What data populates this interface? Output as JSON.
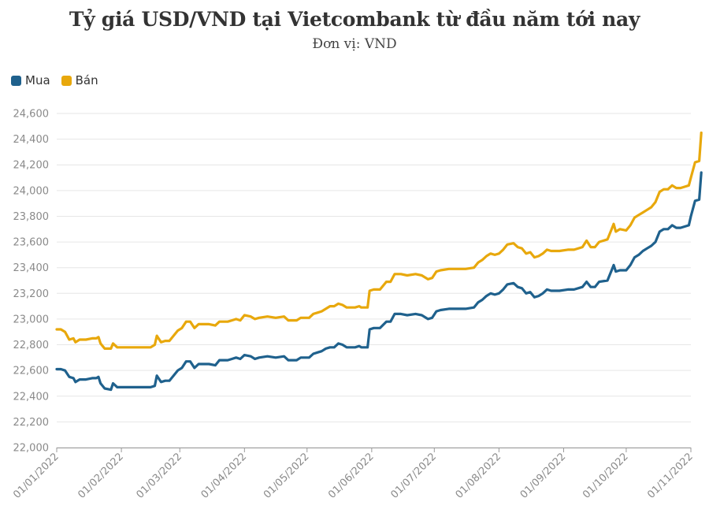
{
  "colors": {
    "mua": "#1f618d",
    "ban": "#e8a80c",
    "grid": "#e6e6e6",
    "axis": "#999999"
  },
  "chart_data": {
    "type": "line",
    "title": "Tỷ giá USD/VND tại Vietcombank từ đầu năm tới nay",
    "subtitle": "Đơn vị: VND",
    "legend_position": "top-left",
    "grid": true,
    "ylim": [
      22000,
      24600
    ],
    "y_ticks": [
      "22,000",
      "22,200",
      "22,400",
      "22,600",
      "22,800",
      "23,000",
      "23,200",
      "23,400",
      "23,600",
      "23,800",
      "24,000",
      "24,200",
      "24,400",
      "24,600"
    ],
    "y_tick_values": [
      22000,
      22200,
      22400,
      22600,
      22800,
      23000,
      23200,
      23400,
      23600,
      23800,
      24000,
      24200,
      24400,
      24600
    ],
    "x_ticks": [
      "01/01/2022",
      "01/02/2022",
      "01/03/2022",
      "01/04/2022",
      "01/05/2022",
      "01/06/2022",
      "01/07/2022",
      "01/08/2022",
      "01/09/2022",
      "01/10/2022",
      "01/11/2022"
    ],
    "series": [
      {
        "name": "Mua",
        "color": "#1f618d",
        "points": [
          [
            "2022-01-01",
            22610
          ],
          [
            "2022-01-03",
            22610
          ],
          [
            "2022-01-05",
            22600
          ],
          [
            "2022-01-07",
            22550
          ],
          [
            "2022-01-09",
            22540
          ],
          [
            "2022-01-10",
            22510
          ],
          [
            "2022-01-12",
            22530
          ],
          [
            "2022-01-15",
            22530
          ],
          [
            "2022-01-18",
            22540
          ],
          [
            "2022-01-20",
            22540
          ],
          [
            "2022-01-21",
            22550
          ],
          [
            "2022-01-22",
            22500
          ],
          [
            "2022-01-24",
            22460
          ],
          [
            "2022-01-27",
            22450
          ],
          [
            "2022-01-28",
            22500
          ],
          [
            "2022-01-30",
            22470
          ],
          [
            "2022-02-02",
            22470
          ],
          [
            "2022-02-06",
            22470
          ],
          [
            "2022-02-10",
            22470
          ],
          [
            "2022-02-15",
            22470
          ],
          [
            "2022-02-17",
            22480
          ],
          [
            "2022-02-18",
            22560
          ],
          [
            "2022-02-20",
            22510
          ],
          [
            "2022-02-22",
            22520
          ],
          [
            "2022-02-24",
            22520
          ],
          [
            "2022-02-26",
            22560
          ],
          [
            "2022-02-28",
            22600
          ],
          [
            "2022-03-02",
            22620
          ],
          [
            "2022-03-04",
            22670
          ],
          [
            "2022-03-06",
            22670
          ],
          [
            "2022-03-08",
            22620
          ],
          [
            "2022-03-10",
            22650
          ],
          [
            "2022-03-15",
            22650
          ],
          [
            "2022-03-18",
            22640
          ],
          [
            "2022-03-20",
            22680
          ],
          [
            "2022-03-24",
            22680
          ],
          [
            "2022-03-26",
            22690
          ],
          [
            "2022-03-28",
            22700
          ],
          [
            "2022-03-30",
            22690
          ],
          [
            "2022-04-01",
            22720
          ],
          [
            "2022-04-04",
            22710
          ],
          [
            "2022-04-06",
            22690
          ],
          [
            "2022-04-08",
            22700
          ],
          [
            "2022-04-12",
            22710
          ],
          [
            "2022-04-16",
            22700
          ],
          [
            "2022-04-20",
            22710
          ],
          [
            "2022-04-22",
            22680
          ],
          [
            "2022-04-26",
            22680
          ],
          [
            "2022-04-28",
            22700
          ],
          [
            "2022-05-02",
            22700
          ],
          [
            "2022-05-04",
            22730
          ],
          [
            "2022-05-06",
            22740
          ],
          [
            "2022-05-08",
            22750
          ],
          [
            "2022-05-10",
            22770
          ],
          [
            "2022-05-12",
            22780
          ],
          [
            "2022-05-14",
            22780
          ],
          [
            "2022-05-16",
            22810
          ],
          [
            "2022-05-18",
            22800
          ],
          [
            "2022-05-20",
            22780
          ],
          [
            "2022-05-24",
            22780
          ],
          [
            "2022-05-26",
            22790
          ],
          [
            "2022-05-27",
            22780
          ],
          [
            "2022-05-30",
            22780
          ],
          [
            "2022-05-31",
            22920
          ],
          [
            "2022-06-02",
            22930
          ],
          [
            "2022-06-05",
            22930
          ],
          [
            "2022-06-08",
            22980
          ],
          [
            "2022-06-10",
            22980
          ],
          [
            "2022-06-12",
            23040
          ],
          [
            "2022-06-15",
            23040
          ],
          [
            "2022-06-18",
            23030
          ],
          [
            "2022-06-22",
            23040
          ],
          [
            "2022-06-25",
            23030
          ],
          [
            "2022-06-28",
            23000
          ],
          [
            "2022-06-30",
            23010
          ],
          [
            "2022-07-02",
            23060
          ],
          [
            "2022-07-04",
            23070
          ],
          [
            "2022-07-08",
            23080
          ],
          [
            "2022-07-12",
            23080
          ],
          [
            "2022-07-16",
            23080
          ],
          [
            "2022-07-20",
            23090
          ],
          [
            "2022-07-22",
            23130
          ],
          [
            "2022-07-24",
            23150
          ],
          [
            "2022-07-26",
            23180
          ],
          [
            "2022-07-28",
            23200
          ],
          [
            "2022-07-30",
            23190
          ],
          [
            "2022-08-01",
            23200
          ],
          [
            "2022-08-03",
            23230
          ],
          [
            "2022-08-05",
            23270
          ],
          [
            "2022-08-08",
            23280
          ],
          [
            "2022-08-10",
            23250
          ],
          [
            "2022-08-12",
            23240
          ],
          [
            "2022-08-14",
            23200
          ],
          [
            "2022-08-16",
            23210
          ],
          [
            "2022-08-18",
            23170
          ],
          [
            "2022-08-20",
            23180
          ],
          [
            "2022-08-22",
            23200
          ],
          [
            "2022-08-24",
            23230
          ],
          [
            "2022-08-26",
            23220
          ],
          [
            "2022-08-30",
            23220
          ],
          [
            "2022-09-03",
            23230
          ],
          [
            "2022-09-06",
            23230
          ],
          [
            "2022-09-10",
            23250
          ],
          [
            "2022-09-12",
            23290
          ],
          [
            "2022-09-14",
            23250
          ],
          [
            "2022-09-16",
            23250
          ],
          [
            "2022-09-18",
            23290
          ],
          [
            "2022-09-22",
            23300
          ],
          [
            "2022-09-24",
            23380
          ],
          [
            "2022-09-25",
            23420
          ],
          [
            "2022-09-26",
            23370
          ],
          [
            "2022-09-28",
            23380
          ],
          [
            "2022-10-01",
            23380
          ],
          [
            "2022-10-03",
            23420
          ],
          [
            "2022-10-05",
            23480
          ],
          [
            "2022-10-07",
            23500
          ],
          [
            "2022-10-09",
            23530
          ],
          [
            "2022-10-11",
            23550
          ],
          [
            "2022-10-13",
            23570
          ],
          [
            "2022-10-15",
            23600
          ],
          [
            "2022-10-17",
            23680
          ],
          [
            "2022-10-19",
            23700
          ],
          [
            "2022-10-21",
            23700
          ],
          [
            "2022-10-23",
            23730
          ],
          [
            "2022-10-25",
            23710
          ],
          [
            "2022-10-27",
            23710
          ],
          [
            "2022-10-29",
            23720
          ],
          [
            "2022-10-31",
            23730
          ],
          [
            "2022-11-01",
            23800
          ],
          [
            "2022-11-03",
            23920
          ],
          [
            "2022-11-05",
            23930
          ],
          [
            "2022-11-06",
            24140
          ]
        ]
      },
      {
        "name": "Bán",
        "color": "#e8a80c",
        "points": [
          [
            "2022-01-01",
            22920
          ],
          [
            "2022-01-03",
            22920
          ],
          [
            "2022-01-05",
            22900
          ],
          [
            "2022-01-07",
            22840
          ],
          [
            "2022-01-09",
            22850
          ],
          [
            "2022-01-10",
            22820
          ],
          [
            "2022-01-12",
            22840
          ],
          [
            "2022-01-15",
            22840
          ],
          [
            "2022-01-18",
            22850
          ],
          [
            "2022-01-20",
            22850
          ],
          [
            "2022-01-21",
            22860
          ],
          [
            "2022-01-22",
            22810
          ],
          [
            "2022-01-24",
            22770
          ],
          [
            "2022-01-27",
            22770
          ],
          [
            "2022-01-28",
            22810
          ],
          [
            "2022-01-30",
            22780
          ],
          [
            "2022-02-02",
            22780
          ],
          [
            "2022-02-06",
            22780
          ],
          [
            "2022-02-10",
            22780
          ],
          [
            "2022-02-15",
            22780
          ],
          [
            "2022-02-17",
            22800
          ],
          [
            "2022-02-18",
            22870
          ],
          [
            "2022-02-20",
            22820
          ],
          [
            "2022-02-22",
            22830
          ],
          [
            "2022-02-24",
            22830
          ],
          [
            "2022-02-26",
            22870
          ],
          [
            "2022-02-28",
            22910
          ],
          [
            "2022-03-02",
            22930
          ],
          [
            "2022-03-04",
            22980
          ],
          [
            "2022-03-06",
            22980
          ],
          [
            "2022-03-08",
            22930
          ],
          [
            "2022-03-10",
            22960
          ],
          [
            "2022-03-15",
            22960
          ],
          [
            "2022-03-18",
            22950
          ],
          [
            "2022-03-20",
            22980
          ],
          [
            "2022-03-24",
            22980
          ],
          [
            "2022-03-26",
            22990
          ],
          [
            "2022-03-28",
            23000
          ],
          [
            "2022-03-30",
            22990
          ],
          [
            "2022-04-01",
            23030
          ],
          [
            "2022-04-04",
            23020
          ],
          [
            "2022-04-06",
            23000
          ],
          [
            "2022-04-08",
            23010
          ],
          [
            "2022-04-12",
            23020
          ],
          [
            "2022-04-16",
            23010
          ],
          [
            "2022-04-20",
            23020
          ],
          [
            "2022-04-22",
            22990
          ],
          [
            "2022-04-26",
            22990
          ],
          [
            "2022-04-28",
            23010
          ],
          [
            "2022-05-02",
            23010
          ],
          [
            "2022-05-04",
            23040
          ],
          [
            "2022-05-06",
            23050
          ],
          [
            "2022-05-08",
            23060
          ],
          [
            "2022-05-10",
            23080
          ],
          [
            "2022-05-12",
            23100
          ],
          [
            "2022-05-14",
            23100
          ],
          [
            "2022-05-16",
            23120
          ],
          [
            "2022-05-18",
            23110
          ],
          [
            "2022-05-20",
            23090
          ],
          [
            "2022-05-24",
            23090
          ],
          [
            "2022-05-26",
            23100
          ],
          [
            "2022-05-27",
            23090
          ],
          [
            "2022-05-30",
            23090
          ],
          [
            "2022-05-31",
            23220
          ],
          [
            "2022-06-02",
            23230
          ],
          [
            "2022-06-05",
            23230
          ],
          [
            "2022-06-08",
            23290
          ],
          [
            "2022-06-10",
            23290
          ],
          [
            "2022-06-12",
            23350
          ],
          [
            "2022-06-15",
            23350
          ],
          [
            "2022-06-18",
            23340
          ],
          [
            "2022-06-22",
            23350
          ],
          [
            "2022-06-25",
            23340
          ],
          [
            "2022-06-28",
            23310
          ],
          [
            "2022-06-30",
            23320
          ],
          [
            "2022-07-02",
            23370
          ],
          [
            "2022-07-04",
            23380
          ],
          [
            "2022-07-08",
            23390
          ],
          [
            "2022-07-12",
            23390
          ],
          [
            "2022-07-16",
            23390
          ],
          [
            "2022-07-20",
            23400
          ],
          [
            "2022-07-22",
            23440
          ],
          [
            "2022-07-24",
            23460
          ],
          [
            "2022-07-26",
            23490
          ],
          [
            "2022-07-28",
            23510
          ],
          [
            "2022-07-30",
            23500
          ],
          [
            "2022-08-01",
            23510
          ],
          [
            "2022-08-03",
            23540
          ],
          [
            "2022-08-05",
            23580
          ],
          [
            "2022-08-08",
            23590
          ],
          [
            "2022-08-10",
            23560
          ],
          [
            "2022-08-12",
            23550
          ],
          [
            "2022-08-14",
            23510
          ],
          [
            "2022-08-16",
            23520
          ],
          [
            "2022-08-18",
            23480
          ],
          [
            "2022-08-20",
            23490
          ],
          [
            "2022-08-22",
            23510
          ],
          [
            "2022-08-24",
            23540
          ],
          [
            "2022-08-26",
            23530
          ],
          [
            "2022-08-30",
            23530
          ],
          [
            "2022-09-03",
            23540
          ],
          [
            "2022-09-06",
            23540
          ],
          [
            "2022-09-10",
            23560
          ],
          [
            "2022-09-12",
            23610
          ],
          [
            "2022-09-14",
            23560
          ],
          [
            "2022-09-16",
            23560
          ],
          [
            "2022-09-18",
            23600
          ],
          [
            "2022-09-22",
            23620
          ],
          [
            "2022-09-24",
            23700
          ],
          [
            "2022-09-25",
            23740
          ],
          [
            "2022-09-26",
            23680
          ],
          [
            "2022-09-28",
            23700
          ],
          [
            "2022-10-01",
            23690
          ],
          [
            "2022-10-03",
            23730
          ],
          [
            "2022-10-05",
            23790
          ],
          [
            "2022-10-07",
            23810
          ],
          [
            "2022-10-09",
            23830
          ],
          [
            "2022-10-11",
            23850
          ],
          [
            "2022-10-13",
            23870
          ],
          [
            "2022-10-15",
            23910
          ],
          [
            "2022-10-17",
            23990
          ],
          [
            "2022-10-19",
            24010
          ],
          [
            "2022-10-21",
            24010
          ],
          [
            "2022-10-23",
            24040
          ],
          [
            "2022-10-25",
            24020
          ],
          [
            "2022-10-27",
            24020
          ],
          [
            "2022-10-29",
            24030
          ],
          [
            "2022-10-31",
            24040
          ],
          [
            "2022-11-01",
            24100
          ],
          [
            "2022-11-03",
            24220
          ],
          [
            "2022-11-05",
            24230
          ],
          [
            "2022-11-06",
            24450
          ]
        ]
      }
    ]
  }
}
